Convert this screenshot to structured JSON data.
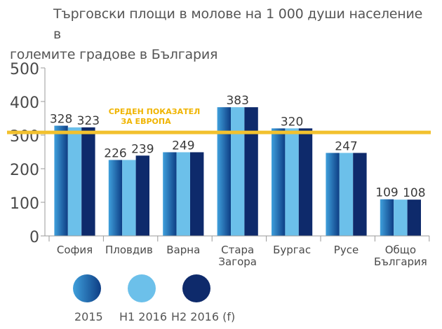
{
  "title_line1": "Търговски площи в молове на 1 000 души население в",
  "title_line2": "големите градове в България",
  "chart_data": {
    "type": "bar",
    "title": "Търговски площи в молове на 1 000 души население в големите градове в България",
    "categories": [
      "София",
      "Пловдив",
      "Варна",
      "Стара Загора",
      "Бургас",
      "Русе",
      "Общо България"
    ],
    "category_lines": [
      [
        "София"
      ],
      [
        "Пловдив"
      ],
      [
        "Варна"
      ],
      [
        "Стара",
        "Загора"
      ],
      [
        "Бургас"
      ],
      [
        "Русе"
      ],
      [
        "Общо",
        "България"
      ]
    ],
    "series": [
      {
        "name": "2015",
        "values": [
          328,
          226,
          249,
          383,
          320,
          247,
          109
        ],
        "color": "#1b5c9e"
      },
      {
        "name": "H1 2016",
        "values": [
          323,
          226,
          249,
          383,
          320,
          247,
          108
        ],
        "color": "#6cc0ea"
      },
      {
        "name": "H2 2016 (f)",
        "values": [
          323,
          239,
          249,
          383,
          320,
          247,
          108
        ],
        "color": "#0e2a6b"
      }
    ],
    "data_labels": [
      {
        "category": 0,
        "series": 0,
        "text": "328"
      },
      {
        "category": 0,
        "series": 2,
        "text": "323"
      },
      {
        "category": 1,
        "series": 0,
        "text": "226"
      },
      {
        "category": 1,
        "series": 2,
        "text": "239"
      },
      {
        "category": 2,
        "series": 1,
        "text": "249"
      },
      {
        "category": 3,
        "series": 1,
        "text": "383"
      },
      {
        "category": 4,
        "series": 1,
        "text": "320"
      },
      {
        "category": 5,
        "series": 1,
        "text": "247"
      },
      {
        "category": 6,
        "series": 0,
        "text": "109"
      },
      {
        "category": 6,
        "series": 2,
        "text": "108"
      }
    ],
    "ylim": [
      0,
      500
    ],
    "yticks": [
      0,
      100,
      200,
      300,
      400,
      500
    ],
    "reference_line": {
      "value": 308,
      "label_line1": "СРЕДЕН ПОКАЗАТЕЛ",
      "label_line2": "ЗА ЕВРОПА",
      "color": "#f2c12e"
    },
    "legend": {
      "placement": "bottom-left"
    },
    "xlabel": "",
    "ylabel": ""
  }
}
